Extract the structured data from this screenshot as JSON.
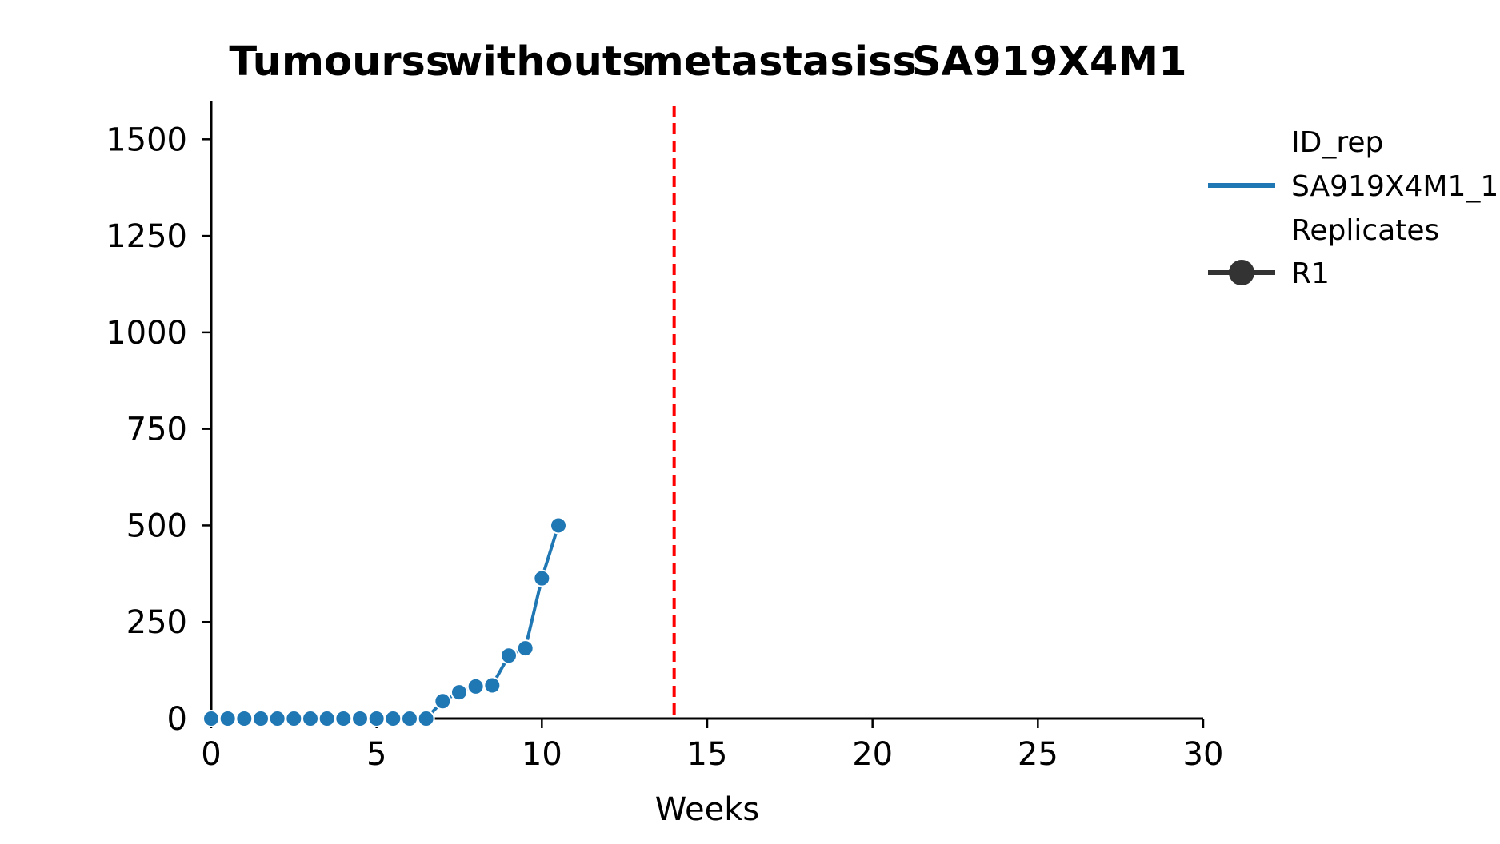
{
  "chart_data": {
    "type": "line",
    "title": "Tumourss​withouts​metastasiss​SA919X4M1",
    "title_words": [
      "Tumourss",
      "withouts",
      "metastasiss",
      "SA919X4M1"
    ],
    "xlabel": "Weeks",
    "ylabel": "",
    "xlim": [
      0,
      30
    ],
    "ylim": [
      0,
      1600
    ],
    "xticks": [
      0,
      5,
      10,
      15,
      20,
      25,
      30
    ],
    "yticks": [
      0,
      250,
      500,
      750,
      1000,
      1250,
      1500
    ],
    "grid": false,
    "vline": {
      "x": 14,
      "color": "#ff0000",
      "style": "dashed"
    },
    "legend": {
      "placement": "upper-right-outside",
      "group1_title": "ID_rep",
      "group1_entries": [
        {
          "label": "SA919X4M1_1",
          "color": "#1f77b4"
        }
      ],
      "group2_title": "Replicates",
      "group2_entries": [
        {
          "label": "R1",
          "color": "#333333",
          "marker": "circle"
        }
      ]
    },
    "series": [
      {
        "name": "SA919X4M1_1",
        "replicate": "R1",
        "color": "#1f77b4",
        "x": [
          0,
          0.5,
          1,
          1.5,
          2,
          2.5,
          3,
          3.5,
          4,
          4.5,
          5,
          5.5,
          6,
          6.5,
          7,
          7.5,
          8,
          8.5,
          9,
          9.5,
          10,
          10.5
        ],
        "y": [
          0,
          0,
          0,
          0,
          0,
          0,
          0,
          0,
          0,
          0,
          0,
          0,
          0,
          0,
          45,
          68,
          83,
          86,
          163,
          182,
          363,
          500
        ]
      }
    ]
  }
}
